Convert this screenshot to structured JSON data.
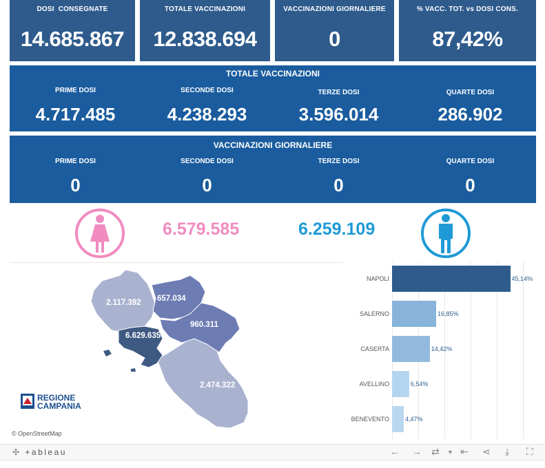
{
  "kpis": [
    {
      "label": "DOSI  CONSEGNATE",
      "value": "14.685.867"
    },
    {
      "label": "TOTALE VACCINAZIONI",
      "value": "12.838.694"
    },
    {
      "label": "VACCINAZIONI GIORNALIERE",
      "value": "0"
    },
    {
      "label": "% VACC. TOT. vs DOSI CONS.",
      "value": "87,42%"
    }
  ],
  "totale": {
    "title": "TOTALE VACCINAZIONI",
    "cols": [
      {
        "label": "PRIME DOSI",
        "value": "4.717.485"
      },
      {
        "label": "SECONDE DOSI",
        "value": "4.238.293"
      },
      {
        "label": "TERZE DOSI",
        "value": "3.596.014"
      },
      {
        "label": "QUARTE DOSI",
        "value": "286.902"
      }
    ]
  },
  "giornaliere": {
    "title": "VACCINAZIONI GIORNALIERE",
    "cols": [
      {
        "label": "PRIME DOSI",
        "value": "0"
      },
      {
        "label": "SECONDE DOSI",
        "value": "0"
      },
      {
        "label": "TERZE DOSI",
        "value": "0"
      },
      {
        "label": "QUARTE DOSI",
        "value": "0"
      }
    ]
  },
  "gender": {
    "female": {
      "value": "6.579.585",
      "icon": "female-icon",
      "color": "#f08cc0"
    },
    "male": {
      "value": "6.259.109",
      "icon": "male-icon",
      "color": "#1f9ad6"
    }
  },
  "map": {
    "provinces": [
      {
        "name": "caserta",
        "value": "2.117.392"
      },
      {
        "name": "benevento",
        "value": "657.034"
      },
      {
        "name": "avellino",
        "value": "960.311"
      },
      {
        "name": "napoli",
        "value": "6.629.635"
      },
      {
        "name": "salerno",
        "value": "2.474.322"
      }
    ],
    "logo_line1": "REGIONE",
    "logo_line2": "CAMPANIA",
    "attribution": "© OpenStreetMap"
  },
  "chart_data": {
    "type": "bar",
    "orientation": "horizontal",
    "categories": [
      "NAPOLI",
      "SALERNO",
      "CASERTA",
      "AVELLINO",
      "BENEVENTO"
    ],
    "values": [
      45.14,
      16.85,
      14.42,
      6.54,
      4.47
    ],
    "labels": [
      "45,14%",
      "16,85%",
      "14,42%",
      "6,54%",
      "4,47%"
    ],
    "xlim": [
      0,
      50
    ],
    "grid": true
  },
  "toolbar": {
    "logo": "+ableau"
  },
  "colors": {
    "kpi_bg": "#2e5b8c",
    "band_bg": "#1a5c9e"
  }
}
